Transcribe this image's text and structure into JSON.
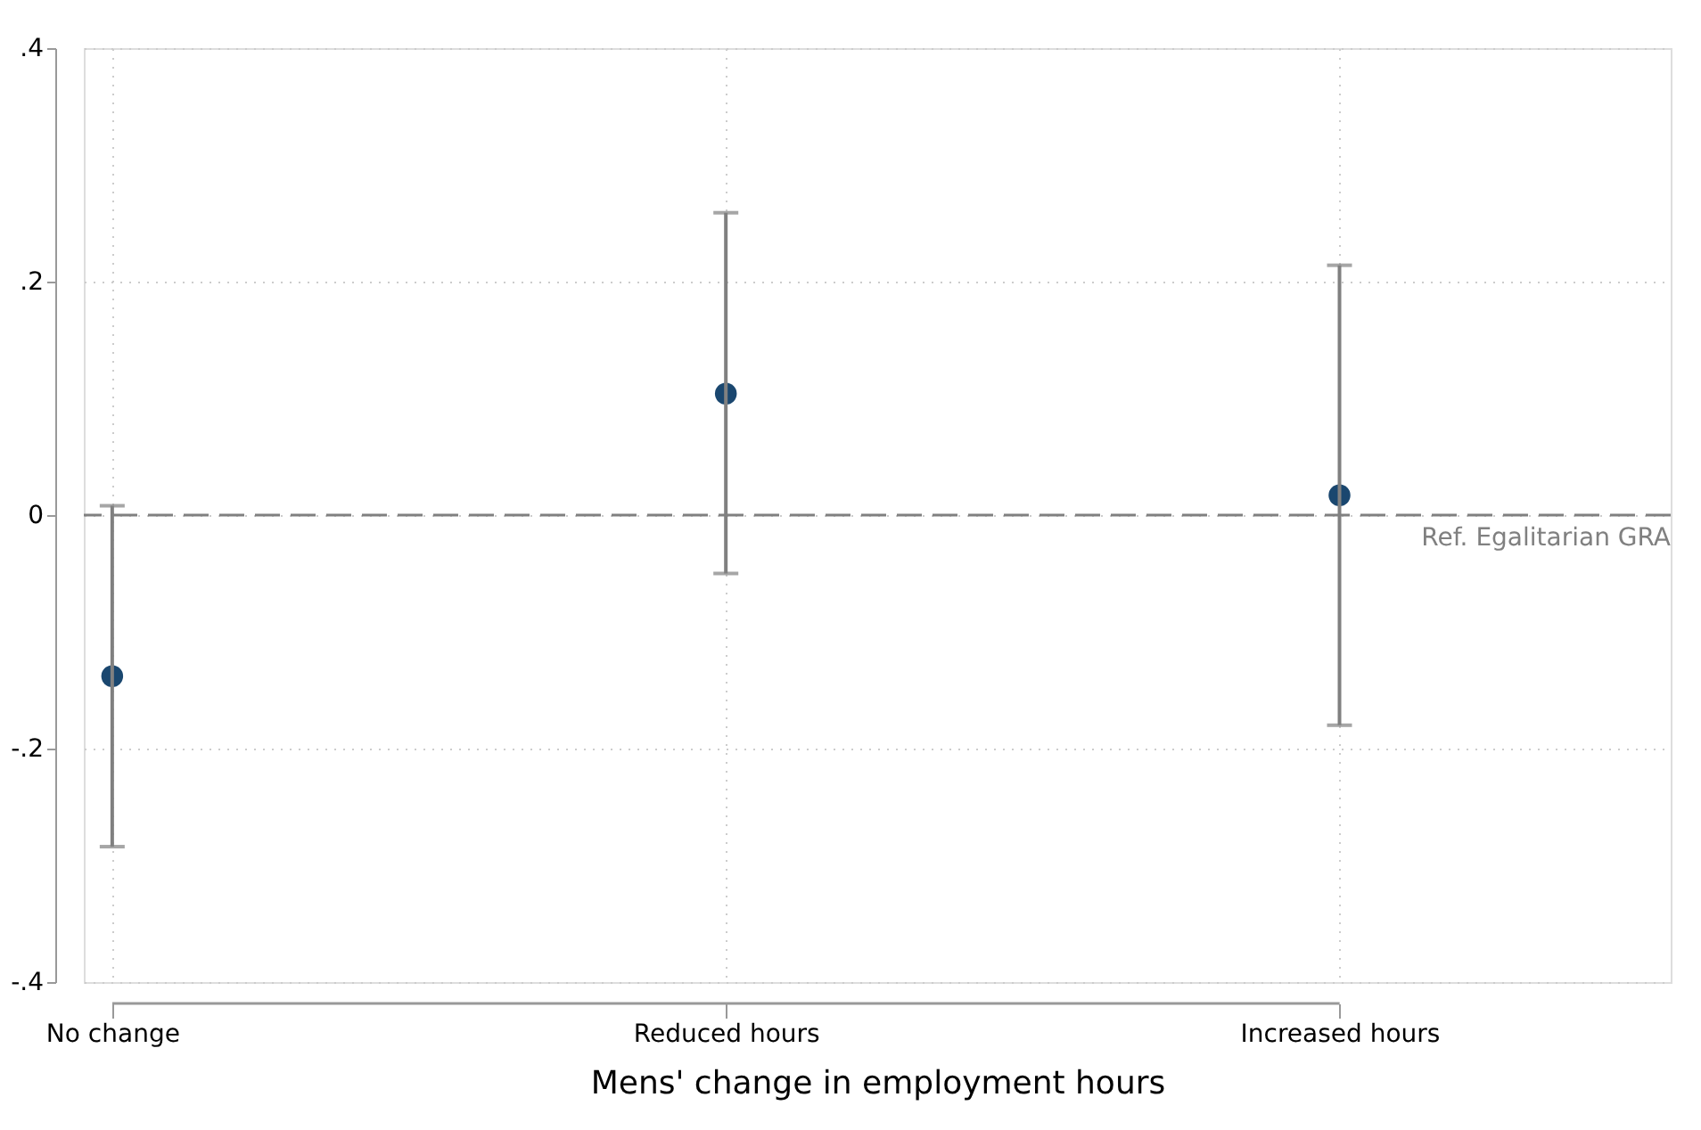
{
  "chart_data": {
    "type": "scatter",
    "categories": [
      "No change",
      "Reduced hours",
      "Increased hours"
    ],
    "values": [
      -0.138,
      0.104,
      0.017
    ],
    "errors": [
      [
        -0.284,
        0.008
      ],
      [
        -0.05,
        0.259
      ],
      [
        -0.18,
        0.214
      ]
    ],
    "color": "#1a476f",
    "marker": "circle",
    "xlabel": "Mens' change in employment hours",
    "ylim": [
      -0.4,
      0.4
    ],
    "yticks": [
      {
        "value": -0.4,
        "label": "-.4"
      },
      {
        "value": -0.2,
        "label": "-.2"
      },
      0,
      {
        "value": 0.2,
        "label": ".2"
      },
      {
        "value": 0.4,
        "label": ".4"
      }
    ],
    "ref_lines": [
      {
        "axis": "y",
        "value": 0,
        "label": "Ref. Egalitarian GRA",
        "color": "#808080",
        "line_style": "dashed"
      }
    ],
    "grid": true
  }
}
